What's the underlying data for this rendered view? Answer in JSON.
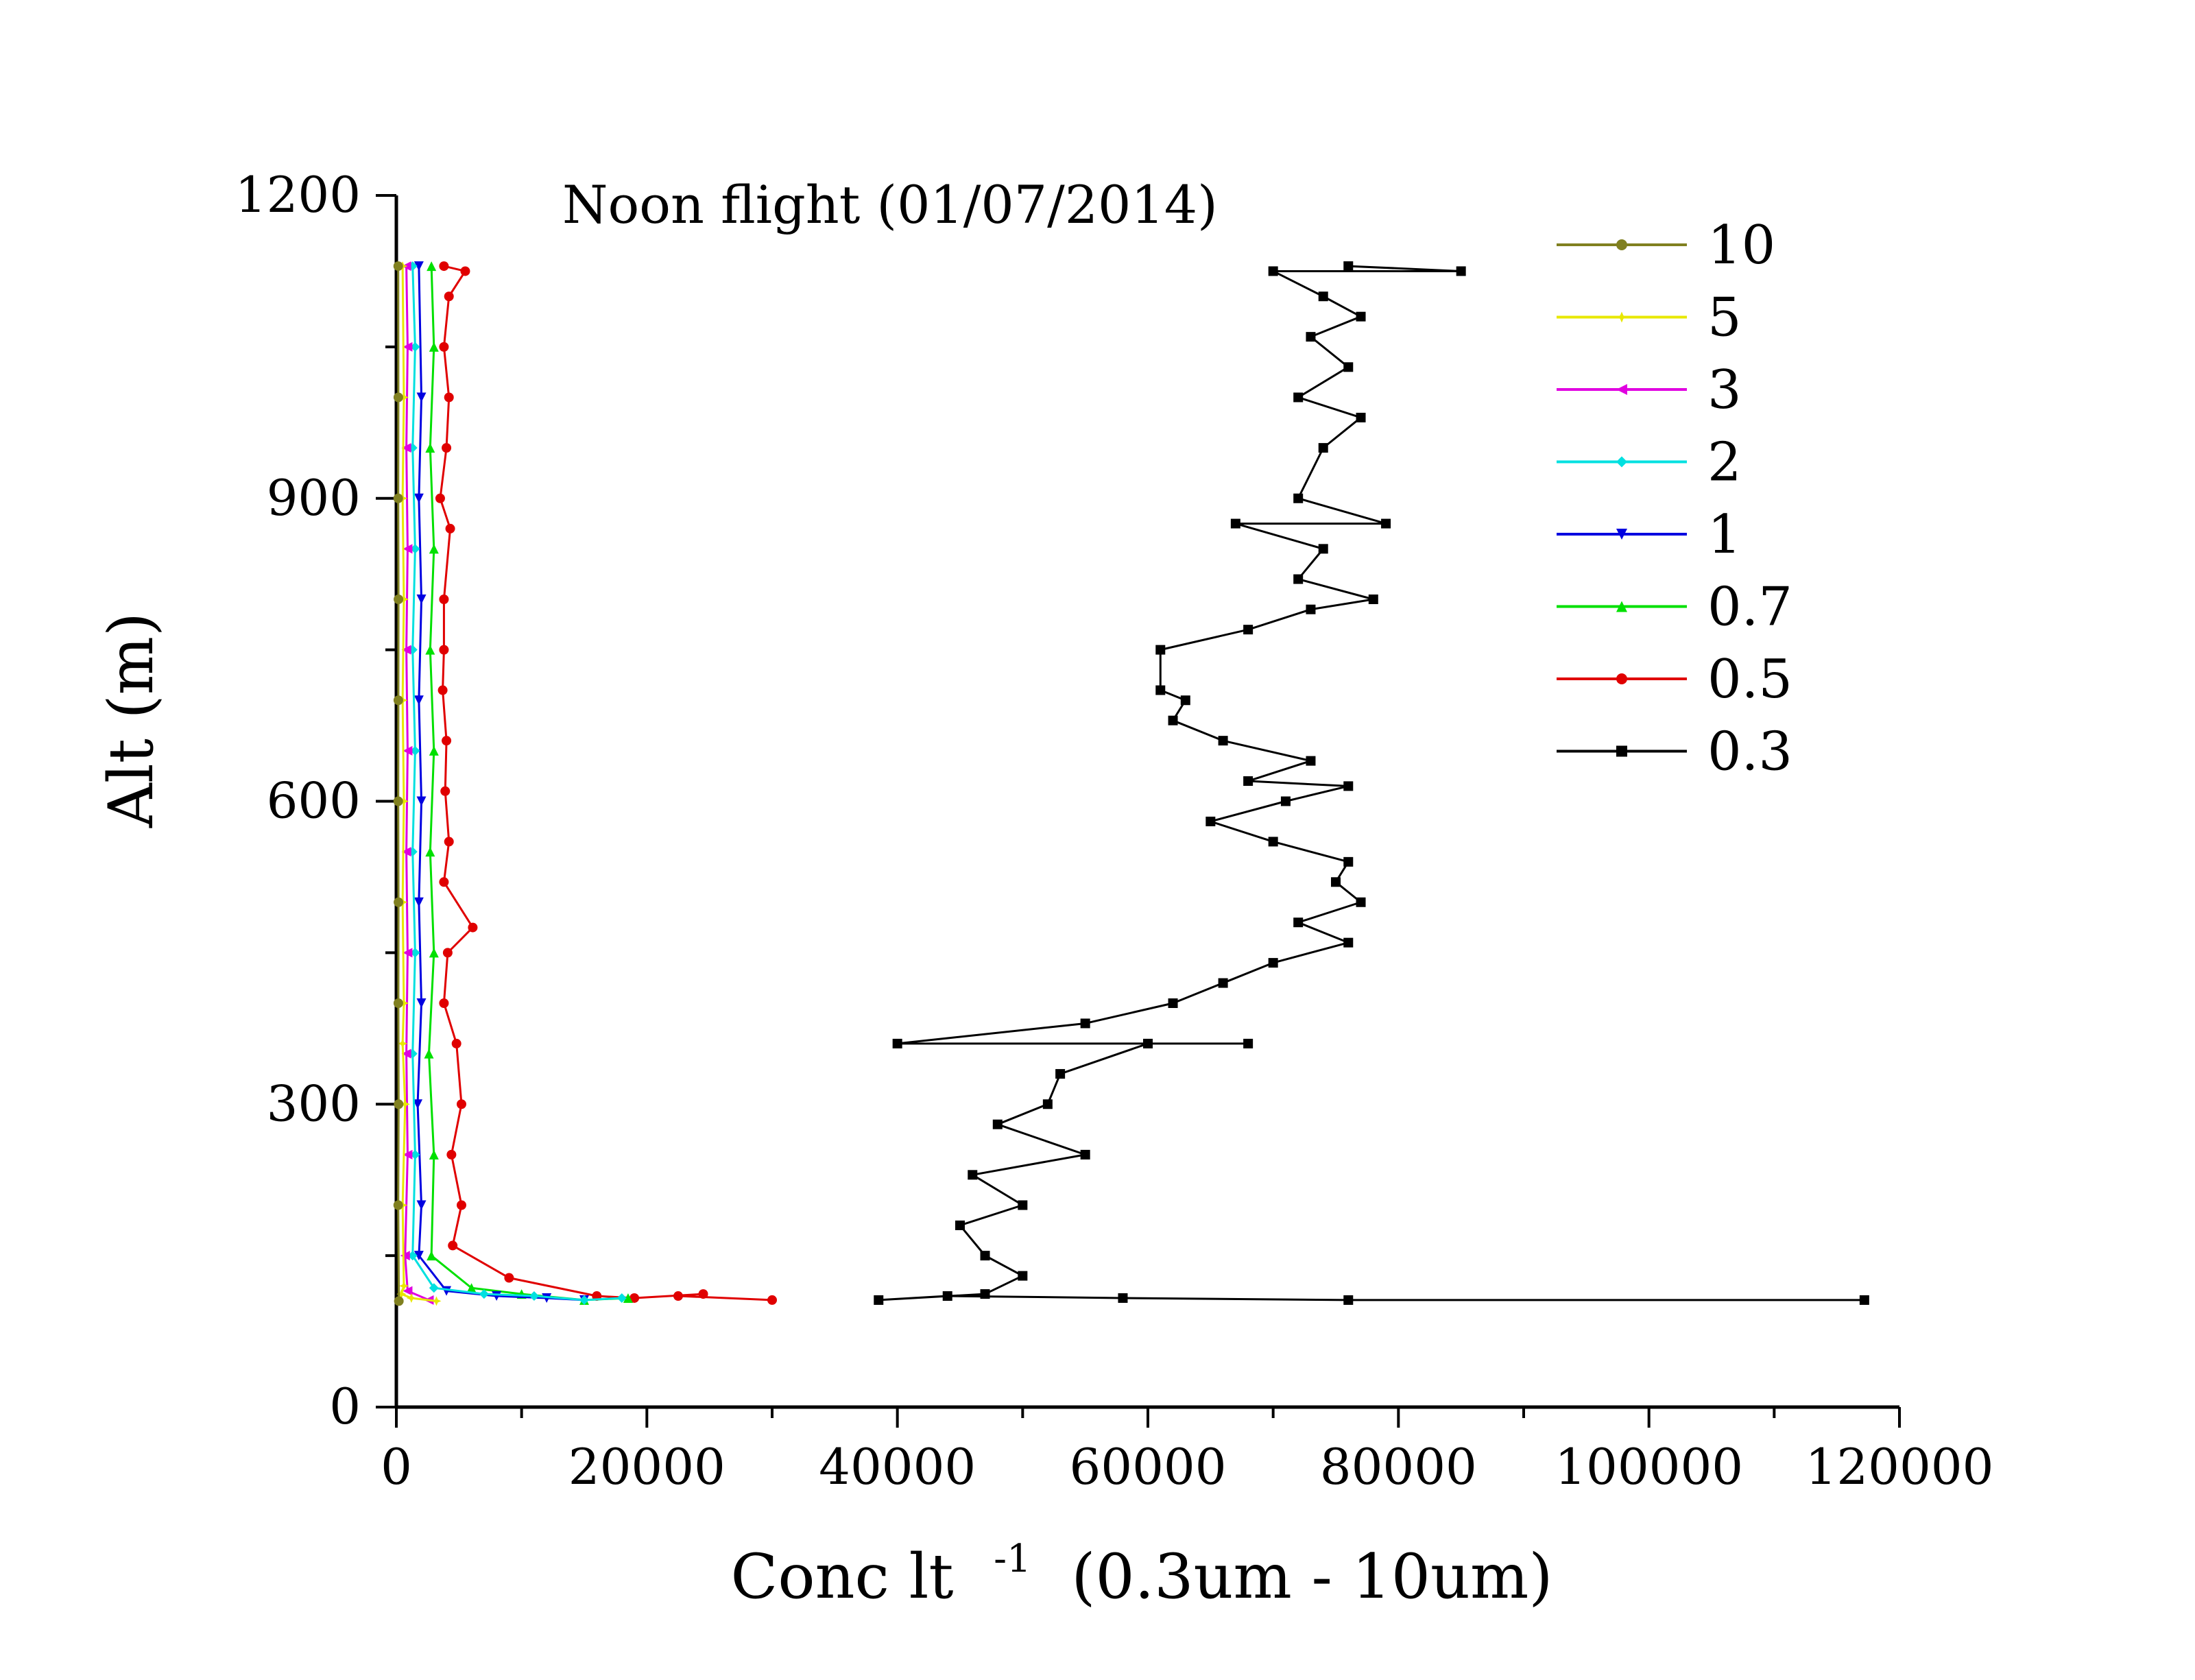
{
  "chart_data": {
    "type": "line",
    "title": "Noon flight (01/07/2014)",
    "xlabel_main": "Conc lt",
    "xlabel_sup": "-1",
    "xlabel_tail": "(0.3um - 10um)",
    "ylabel": "Alt (m)",
    "xlim": [
      0,
      120000
    ],
    "ylim": [
      0,
      1200
    ],
    "x_ticks": [
      0,
      20000,
      40000,
      60000,
      80000,
      100000,
      120000
    ],
    "x_tick_labels": [
      "0",
      "20000",
      "40000",
      "60000",
      "80000",
      "100000",
      "120000"
    ],
    "y_ticks": [
      0,
      300,
      600,
      900,
      1200
    ],
    "y_tick_labels": [
      "0",
      "300",
      "600",
      "900",
      "1200"
    ],
    "grid": false,
    "legend_position": "top-right",
    "series": [
      {
        "name": "10",
        "label": "10",
        "color": "#808020",
        "marker": "circle",
        "points": [
          [
            200,
            105
          ],
          [
            150,
            200
          ],
          [
            180,
            300
          ],
          [
            160,
            400
          ],
          [
            170,
            500
          ],
          [
            150,
            600
          ],
          [
            160,
            700
          ],
          [
            170,
            800
          ],
          [
            150,
            900
          ],
          [
            160,
            1000
          ],
          [
            150,
            1130
          ]
        ]
      },
      {
        "name": "5",
        "label": "5",
        "color": "#e8e800",
        "marker": "star",
        "points": [
          [
            3200,
            105
          ],
          [
            1200,
            108
          ],
          [
            400,
            112
          ],
          [
            600,
            120
          ],
          [
            500,
            200
          ],
          [
            700,
            300
          ],
          [
            500,
            360
          ],
          [
            600,
            400
          ],
          [
            500,
            500
          ],
          [
            600,
            600
          ],
          [
            500,
            700
          ],
          [
            600,
            800
          ],
          [
            500,
            900
          ],
          [
            600,
            1000
          ],
          [
            500,
            1130
          ]
        ]
      },
      {
        "name": "3",
        "label": "3",
        "color": "#e000e0",
        "marker": "triangle-left",
        "points": [
          [
            2600,
            106
          ],
          [
            900,
            115
          ],
          [
            700,
            150
          ],
          [
            900,
            250
          ],
          [
            800,
            350
          ],
          [
            900,
            450
          ],
          [
            800,
            550
          ],
          [
            900,
            650
          ],
          [
            800,
            750
          ],
          [
            900,
            850
          ],
          [
            800,
            950
          ],
          [
            900,
            1050
          ],
          [
            800,
            1130
          ]
        ]
      },
      {
        "name": "2",
        "label": "2",
        "color": "#00e0e0",
        "marker": "diamond",
        "points": [
          [
            18000,
            108
          ],
          [
            15000,
            106
          ],
          [
            11000,
            110
          ],
          [
            7000,
            112
          ],
          [
            3000,
            118
          ],
          [
            1300,
            150
          ],
          [
            1500,
            250
          ],
          [
            1300,
            350
          ],
          [
            1500,
            450
          ],
          [
            1300,
            550
          ],
          [
            1500,
            650
          ],
          [
            1300,
            750
          ],
          [
            1500,
            850
          ],
          [
            1300,
            950
          ],
          [
            1500,
            1050
          ],
          [
            1300,
            1130
          ]
        ]
      },
      {
        "name": "1",
        "label": "1",
        "color": "#0000e0",
        "marker": "triangle-down",
        "points": [
          [
            15000,
            106
          ],
          [
            12000,
            108
          ],
          [
            8000,
            110
          ],
          [
            4000,
            115
          ],
          [
            1800,
            150
          ],
          [
            2000,
            200
          ],
          [
            1700,
            300
          ],
          [
            2000,
            400
          ],
          [
            1800,
            500
          ],
          [
            2000,
            600
          ],
          [
            1800,
            700
          ],
          [
            2000,
            800
          ],
          [
            1800,
            900
          ],
          [
            2000,
            1000
          ],
          [
            1800,
            1130
          ]
        ]
      },
      {
        "name": "0.7",
        "label": "0.7",
        "color": "#00e000",
        "marker": "triangle-up",
        "points": [
          [
            18500,
            108
          ],
          [
            15000,
            106
          ],
          [
            10000,
            112
          ],
          [
            6000,
            118
          ],
          [
            2800,
            150
          ],
          [
            3000,
            250
          ],
          [
            2600,
            350
          ],
          [
            3000,
            450
          ],
          [
            2700,
            550
          ],
          [
            3000,
            650
          ],
          [
            2700,
            750
          ],
          [
            3000,
            850
          ],
          [
            2700,
            950
          ],
          [
            3000,
            1050
          ],
          [
            2800,
            1130
          ]
        ]
      },
      {
        "name": "0.5",
        "label": "0.5",
        "color": "#e00000",
        "marker": "circle",
        "points": [
          [
            30000,
            106
          ],
          [
            22500,
            110
          ],
          [
            24500,
            112
          ],
          [
            19000,
            108
          ],
          [
            16000,
            110
          ],
          [
            9000,
            128
          ],
          [
            4500,
            160
          ],
          [
            5200,
            200
          ],
          [
            4400,
            250
          ],
          [
            5200,
            300
          ],
          [
            4800,
            360
          ],
          [
            3800,
            400
          ],
          [
            4100,
            450
          ],
          [
            6100,
            475
          ],
          [
            3800,
            520
          ],
          [
            4200,
            560
          ],
          [
            3900,
            610
          ],
          [
            4000,
            660
          ],
          [
            3700,
            710
          ],
          [
            3800,
            750
          ],
          [
            3800,
            800
          ],
          [
            4300,
            870
          ],
          [
            3500,
            900
          ],
          [
            4000,
            950
          ],
          [
            4200,
            1000
          ],
          [
            3800,
            1050
          ],
          [
            4200,
            1100
          ],
          [
            5500,
            1125
          ],
          [
            3800,
            1130
          ]
        ]
      },
      {
        "name": "0.3",
        "label": "0.3",
        "color": "#000000",
        "marker": "square",
        "points": [
          [
            117200,
            106
          ],
          [
            76000,
            106
          ],
          [
            58000,
            108
          ],
          [
            44000,
            110
          ],
          [
            38500,
            106
          ],
          [
            47000,
            112
          ],
          [
            50000,
            130
          ],
          [
            47000,
            150
          ],
          [
            45000,
            180
          ],
          [
            50000,
            200
          ],
          [
            46000,
            230
          ],
          [
            55000,
            250
          ],
          [
            48000,
            280
          ],
          [
            52000,
            300
          ],
          [
            53000,
            330
          ],
          [
            60000,
            360
          ],
          [
            68000,
            360
          ],
          [
            40000,
            360
          ],
          [
            55000,
            380
          ],
          [
            62000,
            400
          ],
          [
            66000,
            420
          ],
          [
            70000,
            440
          ],
          [
            76000,
            460
          ],
          [
            72000,
            480
          ],
          [
            77000,
            500
          ],
          [
            75000,
            520
          ],
          [
            76000,
            540
          ],
          [
            70000,
            560
          ],
          [
            65000,
            580
          ],
          [
            71000,
            600
          ],
          [
            76000,
            615
          ],
          [
            68000,
            620
          ],
          [
            73000,
            640
          ],
          [
            66000,
            660
          ],
          [
            62000,
            680
          ],
          [
            63000,
            700
          ],
          [
            61000,
            710
          ],
          [
            61000,
            750
          ],
          [
            68000,
            770
          ],
          [
            73000,
            790
          ],
          [
            78000,
            800
          ],
          [
            72000,
            820
          ],
          [
            74000,
            850
          ],
          [
            67000,
            875
          ],
          [
            79000,
            875
          ],
          [
            72000,
            900
          ],
          [
            74000,
            950
          ],
          [
            77000,
            980
          ],
          [
            72000,
            1000
          ],
          [
            76000,
            1030
          ],
          [
            73000,
            1060
          ],
          [
            77000,
            1080
          ],
          [
            74000,
            1100
          ],
          [
            70000,
            1125
          ],
          [
            85000,
            1125
          ],
          [
            76000,
            1130
          ]
        ]
      }
    ]
  }
}
